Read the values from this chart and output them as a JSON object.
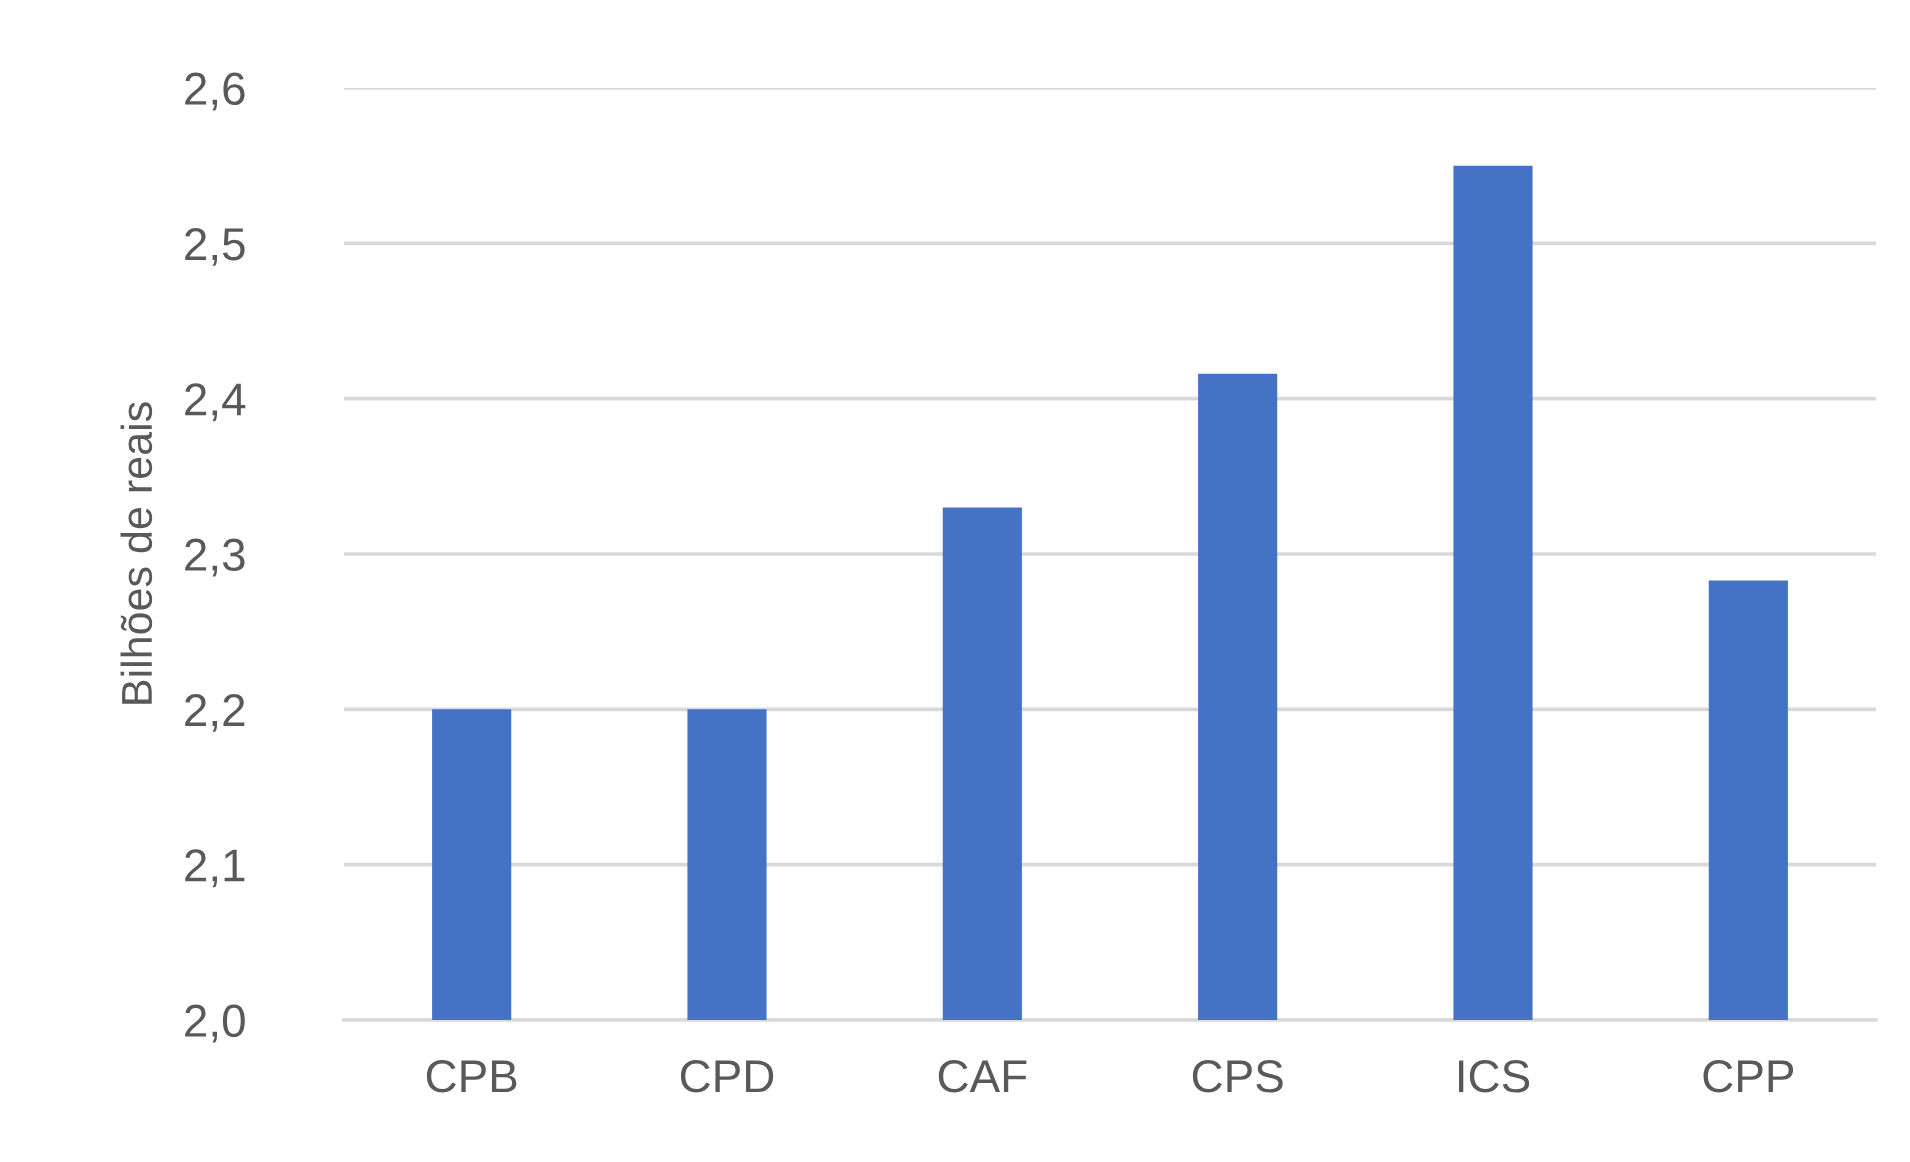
{
  "chart_data": {
    "type": "bar",
    "ylabel": "Bilhões de reais",
    "categories": [
      "CPB",
      "CPD",
      "CAF",
      "CPS",
      "ICS",
      "CPP"
    ],
    "values": [
      2.2,
      2.2,
      2.33,
      2.416,
      2.55,
      2.283
    ],
    "color": "#4472c4",
    "ylim": [
      2.0,
      2.6
    ],
    "yticks": [
      {
        "value": 2.0,
        "label": "2,0"
      },
      {
        "value": 2.1,
        "label": "2,1"
      },
      {
        "value": 2.2,
        "label": "2,2"
      },
      {
        "value": 2.3,
        "label": "2,3"
      },
      {
        "value": 2.4,
        "label": "2,4"
      },
      {
        "value": 2.5,
        "label": "2,5"
      },
      {
        "value": 2.6,
        "label": "2,6"
      }
    ],
    "grid": "y"
  }
}
